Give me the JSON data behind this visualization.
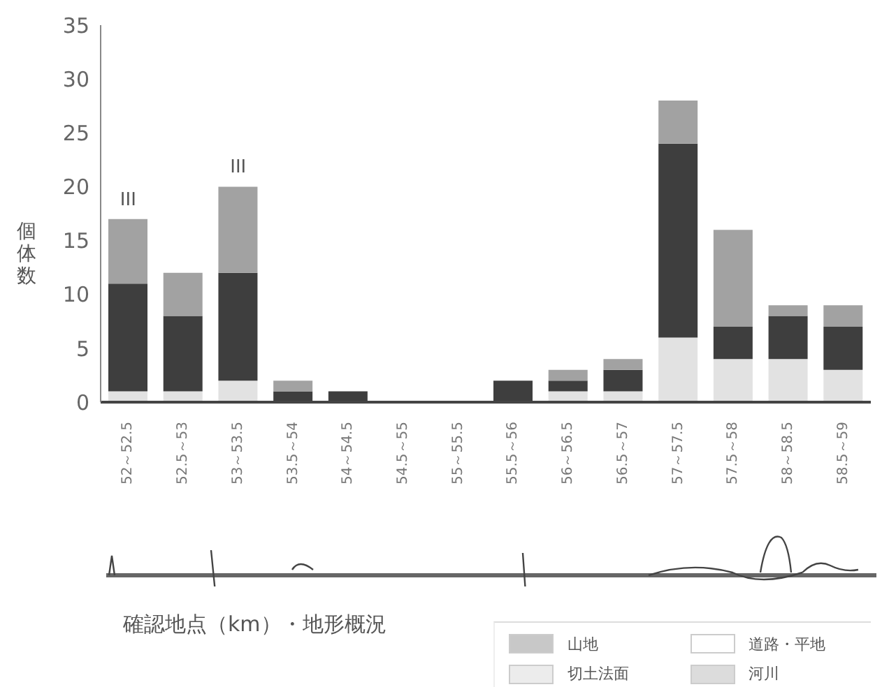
{
  "chart_data": {
    "type": "bar",
    "stacked": true,
    "ylabel": "個体数",
    "categories": [
      "52～52.5",
      "52.5～53",
      "53～53.5",
      "53.5～54",
      "54～54.5",
      "54.5～55",
      "55～55.5",
      "55.5～56",
      "56～56.5",
      "56.5～57",
      "57～57.5",
      "57.5～58",
      "58～58.5",
      "58.5～59"
    ],
    "series": [
      {
        "color": "#e2e2e2",
        "values": [
          1,
          1,
          2,
          0,
          0,
          0,
          0,
          0,
          1,
          1,
          6,
          4,
          4,
          3
        ]
      },
      {
        "color": "#3e3e3e",
        "values": [
          10,
          7,
          10,
          1,
          1,
          0,
          0,
          2,
          1,
          2,
          18,
          3,
          4,
          4
        ]
      },
      {
        "color": "#a2a2a2",
        "values": [
          6,
          4,
          8,
          1,
          0,
          0,
          0,
          0,
          1,
          1,
          4,
          9,
          1,
          2
        ]
      }
    ],
    "ylim": [
      0,
      35
    ],
    "yticks": [
      0,
      5,
      10,
      15,
      20,
      25,
      30,
      35
    ],
    "annotations": [
      {
        "text": "III",
        "x": "52～52.5",
        "y": 17
      },
      {
        "text": "III",
        "x": "53～53.5",
        "y": 20
      },
      "確認地点（km）・地形概況",
      "山地",
      "道路・平地",
      "切土法面",
      "河川"
    ]
  }
}
